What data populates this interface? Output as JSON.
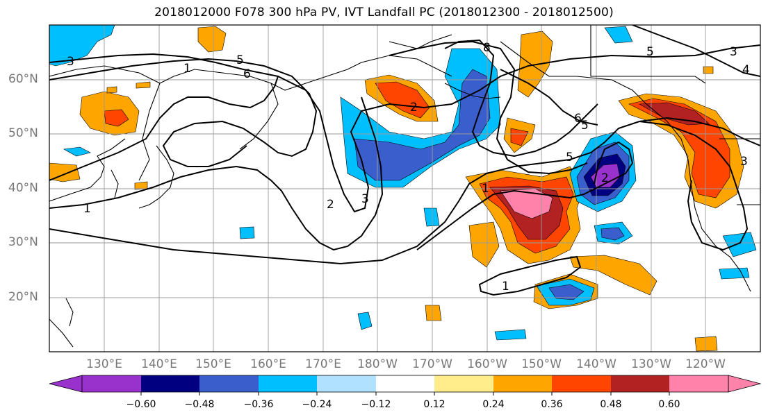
{
  "title": "2018012000 F078 300 hPa PV, IVT Landfall PC (2018012300 - 2018012500)",
  "map": {
    "projection": "PlateCarree",
    "lon_range_east": [
      120,
      250
    ],
    "lat_range": [
      10,
      70
    ],
    "lat_ticks": [
      "20°N",
      "30°N",
      "40°N",
      "50°N",
      "60°N"
    ],
    "lon_ticks": [
      "130°E",
      "140°E",
      "150°E",
      "160°E",
      "170°E",
      "180°W",
      "170°W",
      "160°W",
      "150°W",
      "140°W",
      "130°W",
      "120°W"
    ],
    "grid": true,
    "coastlines": true
  },
  "contour_labels": [
    "3",
    "5",
    "6",
    "2",
    "3",
    "1",
    "8",
    "5",
    "6",
    "5",
    "3",
    "2",
    "1",
    "2",
    "4",
    "5",
    "3",
    "1",
    "1"
  ],
  "colorbar": {
    "orientation": "horizontal",
    "extend": "both",
    "ticks": [
      "−0.60",
      "−0.48",
      "−0.36",
      "−0.24",
      "−0.12",
      "0.12",
      "0.24",
      "0.36",
      "0.48",
      "0.60"
    ],
    "colors": [
      "#9932cc",
      "#000080",
      "#3a5fcd",
      "#00bfff",
      "#b0e2ff",
      "#ffffff",
      "#ffec8b",
      "#ffa500",
      "#ff4500",
      "#b22222",
      "#ff82ab"
    ]
  }
}
